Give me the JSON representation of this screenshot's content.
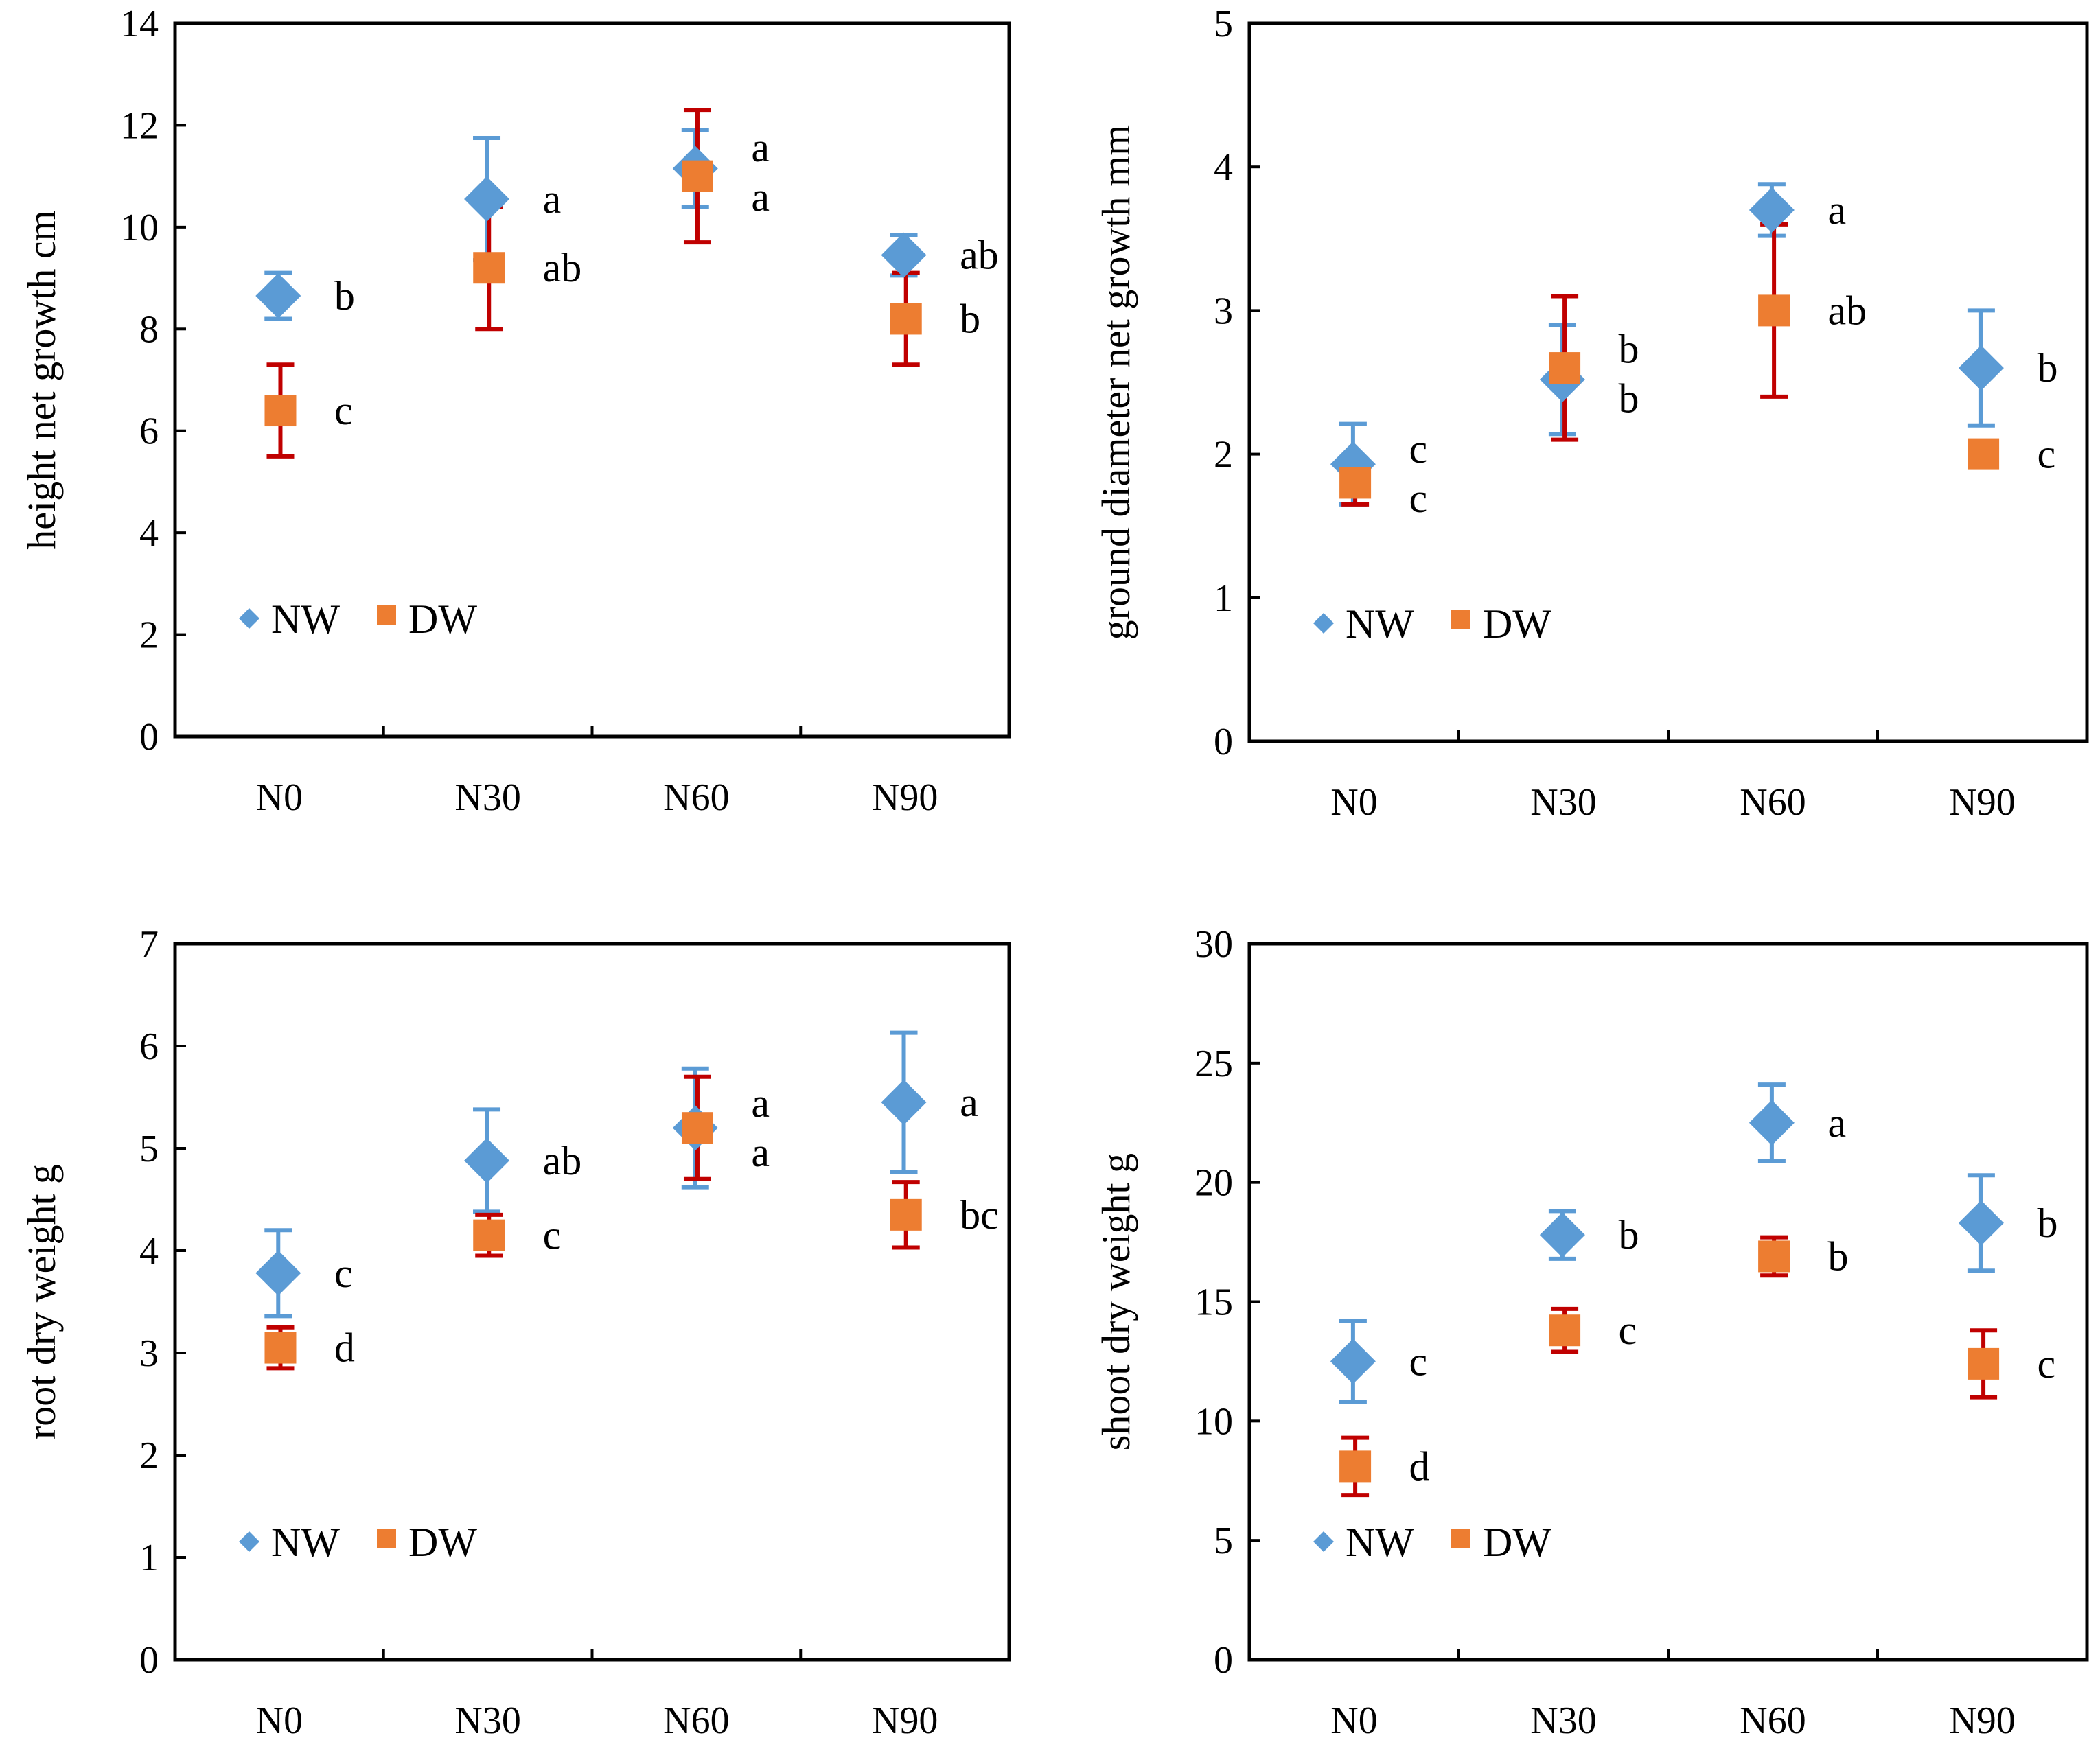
{
  "colors": {
    "NW": "#5B9BD5",
    "DW": "#ED7D31",
    "NW_err": "#5B9BD5",
    "DW_err": "#C00000"
  },
  "chart_data": [
    {
      "type": "scatter",
      "title": "",
      "xlabel": "",
      "ylabel": "height net growth cm",
      "categories": [
        "N0",
        "N30",
        "N60",
        "N90"
      ],
      "ylim": [
        0,
        14
      ],
      "yticks": [
        "0",
        "2",
        "4",
        "6",
        "8",
        "10",
        "12",
        "14"
      ],
      "legend_position": "bottom-left",
      "series": [
        {
          "name": "NW",
          "marker": "diamond",
          "values": [
            8.65,
            10.55,
            11.15,
            9.45
          ],
          "errors": [
            0.45,
            1.2,
            0.75,
            0.4
          ],
          "letters": [
            "b",
            "a",
            "a",
            "ab"
          ]
        },
        {
          "name": "DW",
          "marker": "square",
          "values": [
            6.4,
            9.2,
            11.0,
            8.2
          ],
          "errors": [
            0.9,
            1.2,
            1.3,
            0.9
          ],
          "letters": [
            "c",
            "ab",
            "a",
            "b"
          ]
        }
      ]
    },
    {
      "type": "scatter",
      "title": "",
      "xlabel": "",
      "ylabel": "ground diameter net growth mm",
      "categories": [
        "N0",
        "N30",
        "N60",
        "N90"
      ],
      "ylim": [
        0,
        5
      ],
      "yticks": [
        "0",
        "1",
        "2",
        "3",
        "4",
        "5"
      ],
      "legend_position": "bottom-left",
      "series": [
        {
          "name": "NW",
          "marker": "diamond",
          "values": [
            1.93,
            2.52,
            3.7,
            2.6
          ],
          "errors": [
            0.28,
            0.38,
            0.18,
            0.4
          ],
          "letters": [
            "c",
            "b",
            "a",
            "b"
          ]
        },
        {
          "name": "DW",
          "marker": "square",
          "values": [
            1.8,
            2.6,
            3.0,
            2.0
          ],
          "errors": [
            0.15,
            0.5,
            0.6,
            0.0
          ],
          "letters": [
            "c",
            "b",
            "ab",
            "c"
          ]
        }
      ]
    },
    {
      "type": "scatter",
      "title": "",
      "xlabel": "",
      "ylabel": "root dry weight g",
      "categories": [
        "N0",
        "N30",
        "N60",
        "N90"
      ],
      "ylim": [
        0,
        7
      ],
      "yticks": [
        "0",
        "1",
        "2",
        "3",
        "4",
        "5",
        "6",
        "7"
      ],
      "legend_position": "bottom-left",
      "series": [
        {
          "name": "NW",
          "marker": "diamond",
          "values": [
            3.78,
            4.88,
            5.2,
            5.45
          ],
          "errors": [
            0.42,
            0.5,
            0.58,
            0.68
          ],
          "letters": [
            "c",
            "ab",
            "a",
            "a"
          ]
        },
        {
          "name": "DW",
          "marker": "square",
          "values": [
            3.05,
            4.15,
            5.2,
            4.35
          ],
          "errors": [
            0.2,
            0.2,
            0.5,
            0.32
          ],
          "letters": [
            "d",
            "c",
            "a",
            "bc"
          ]
        }
      ]
    },
    {
      "type": "scatter",
      "title": "",
      "xlabel": "",
      "ylabel": "shoot dry weight g",
      "categories": [
        "N0",
        "N30",
        "N60",
        "N90"
      ],
      "ylim": [
        0,
        30
      ],
      "yticks": [
        "0",
        "5",
        "10",
        "15",
        "20",
        "25",
        "30"
      ],
      "legend_position": "bottom-left",
      "series": [
        {
          "name": "NW",
          "marker": "diamond",
          "values": [
            12.5,
            17.8,
            22.5,
            18.3
          ],
          "errors": [
            1.7,
            1.0,
            1.6,
            2.0
          ],
          "letters": [
            "c",
            "b",
            "a",
            "b"
          ]
        },
        {
          "name": "DW",
          "marker": "square",
          "values": [
            8.1,
            13.8,
            16.9,
            12.4
          ],
          "errors": [
            1.2,
            0.9,
            0.8,
            1.4
          ],
          "letters": [
            "d",
            "c",
            "b",
            "c"
          ]
        }
      ]
    }
  ]
}
